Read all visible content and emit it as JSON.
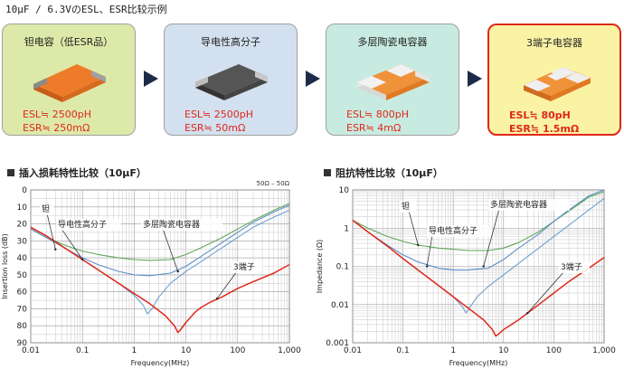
{
  "page_title": "10μF / 6.3VのESL、ESR比较示例",
  "colors": {
    "red": "#e0281b",
    "blue": "#5b8fc7",
    "green": "#5fa659",
    "arrow": "#1d2a4a"
  },
  "cards": [
    {
      "name": "钽电容（低ESR品）",
      "esl": "ESL≒ 2500pH",
      "esr": "ESR≒ 250mΩ",
      "bg": "#dde9a8",
      "chip": "tantalum"
    },
    {
      "name": "导电性高分子",
      "esl": "ESL≒ 2500pH",
      "esr": "ESR≒ 50mΩ",
      "bg": "#d3e0ef",
      "chip": "polymer"
    },
    {
      "name": "多层陶瓷电容器",
      "esl": "ESL≒ 800pH",
      "esr": "ESR≒ 4mΩ",
      "bg": "#c8ebe1",
      "chip": "mlcc"
    },
    {
      "name": "3端子电容器",
      "esl": "ESL≒ 80pH",
      "esr": "ESR≒ 1.5mΩ",
      "bg": "#fbf3a4",
      "chip": "three-terminal"
    }
  ],
  "chart_data": [
    {
      "type": "line",
      "title": "插入损耗特性比较（10μF）",
      "xlabel": "Frequency(MHz)",
      "ylabel": "Insertion loss (dB)",
      "xscale": "log",
      "xlim": [
        0.01,
        1000
      ],
      "ylim": [
        0,
        90
      ],
      "y_inverted": true,
      "x_ticks": [
        "0.01",
        "0.1",
        "1",
        "10",
        "100",
        "1,000"
      ],
      "y_ticks": [
        "0",
        "10",
        "20",
        "30",
        "40",
        "50",
        "60",
        "70",
        "80",
        "90"
      ],
      "corner_note": "50Ω – 50Ω",
      "grid": true,
      "series": [
        {
          "name": "钽",
          "color": "#5fa659",
          "x": [
            0.01,
            0.02,
            0.05,
            0.1,
            0.2,
            0.5,
            1,
            2,
            5,
            10,
            20,
            50,
            100,
            200,
            500,
            1000
          ],
          "y": [
            23,
            28,
            33,
            36,
            38,
            40,
            41,
            41.5,
            41,
            38,
            34,
            28,
            23,
            18,
            12,
            8
          ]
        },
        {
          "name": "导电性高分子",
          "color": "#5b8fc7",
          "x": [
            0.01,
            0.02,
            0.05,
            0.1,
            0.2,
            0.5,
            1,
            2,
            5,
            10,
            20,
            50,
            100,
            200,
            500,
            1000
          ],
          "y": [
            23,
            28,
            35,
            40,
            44,
            48,
            50,
            50.5,
            49,
            45,
            39,
            31,
            25,
            19,
            13,
            9
          ]
        },
        {
          "name": "多层陶瓷电容器",
          "color": "#6f9fd0",
          "x": [
            0.01,
            0.02,
            0.05,
            0.1,
            0.2,
            0.5,
            1,
            1.5,
            1.8,
            2.2,
            3,
            5,
            10,
            20,
            50,
            100,
            200,
            500,
            1000
          ],
          "y": [
            22,
            27,
            35,
            41,
            47,
            55,
            62,
            68,
            73,
            70,
            63,
            55,
            48,
            42,
            34,
            28,
            22,
            16,
            12
          ]
        },
        {
          "name": "3端子",
          "color": "#e0281b",
          "x": [
            0.01,
            0.02,
            0.05,
            0.1,
            0.2,
            0.5,
            1,
            2,
            4,
            6,
            7,
            8,
            10,
            15,
            20,
            30,
            50,
            100,
            200,
            500,
            1000
          ],
          "y": [
            22,
            27,
            35,
            41,
            47,
            55,
            61,
            67,
            74,
            80,
            84,
            82,
            78,
            72,
            69,
            66,
            63,
            58,
            54,
            49,
            44
          ]
        }
      ],
      "annotations": [
        {
          "text": "钽",
          "series": 0
        },
        {
          "text": "导电性高分子",
          "series": 1
        },
        {
          "text": "多层陶瓷电容器",
          "series": 2
        },
        {
          "text": "3端子",
          "series": 3
        }
      ]
    },
    {
      "type": "line",
      "title": "阻抗特性比较（10μF）",
      "xlabel": "Frequency(MHz)",
      "ylabel": "Impedance (Ω)",
      "xscale": "log",
      "yscale": "log",
      "xlim": [
        0.01,
        1000
      ],
      "ylim": [
        0.001,
        10
      ],
      "x_ticks": [
        "0.01",
        "0.1",
        "1",
        "10",
        "100",
        "1,000"
      ],
      "y_ticks": [
        "10",
        "1",
        "0.1",
        "0.01",
        "0.001"
      ],
      "grid": true,
      "series": [
        {
          "name": "钽",
          "color": "#5fa659",
          "x": [
            0.01,
            0.02,
            0.05,
            0.1,
            0.2,
            0.5,
            1,
            2,
            5,
            10,
            20,
            50,
            100,
            200,
            500,
            1000
          ],
          "y": [
            1.6,
            1.0,
            0.6,
            0.45,
            0.36,
            0.3,
            0.28,
            0.26,
            0.26,
            0.3,
            0.42,
            0.8,
            1.5,
            2.8,
            6.5,
            9
          ]
        },
        {
          "name": "导电性高分子",
          "color": "#5b8fc7",
          "x": [
            0.01,
            0.02,
            0.05,
            0.1,
            0.2,
            0.5,
            1,
            2,
            5,
            10,
            20,
            50,
            100,
            200,
            500,
            1000
          ],
          "y": [
            1.6,
            0.8,
            0.35,
            0.2,
            0.13,
            0.09,
            0.08,
            0.08,
            0.09,
            0.15,
            0.3,
            0.7,
            1.5,
            3,
            7,
            10
          ]
        },
        {
          "name": "多层陶瓷电容器",
          "color": "#6f9fd0",
          "x": [
            0.01,
            0.02,
            0.05,
            0.1,
            0.2,
            0.5,
            1,
            1.5,
            1.8,
            2.2,
            3,
            5,
            10,
            20,
            50,
            100,
            200,
            500,
            1000
          ],
          "y": [
            1.6,
            0.8,
            0.33,
            0.16,
            0.08,
            0.032,
            0.016,
            0.009,
            0.006,
            0.009,
            0.016,
            0.03,
            0.06,
            0.12,
            0.3,
            0.6,
            1.2,
            3,
            6
          ]
        },
        {
          "name": "3端子",
          "color": "#e0281b",
          "x": [
            0.01,
            0.02,
            0.05,
            0.1,
            0.2,
            0.5,
            1,
            2,
            4,
            6,
            7,
            8,
            10,
            20,
            50,
            100,
            200,
            500,
            1000
          ],
          "y": [
            1.6,
            0.8,
            0.33,
            0.16,
            0.08,
            0.032,
            0.016,
            0.008,
            0.004,
            0.0022,
            0.0015,
            0.0017,
            0.0022,
            0.004,
            0.01,
            0.02,
            0.04,
            0.09,
            0.17
          ]
        }
      ],
      "annotations": [
        {
          "text": "钽",
          "series": 0
        },
        {
          "text": "导电性高分子",
          "series": 1
        },
        {
          "text": "多层陶瓷电容器",
          "series": 2
        },
        {
          "text": "3端子",
          "series": 3
        }
      ]
    }
  ]
}
